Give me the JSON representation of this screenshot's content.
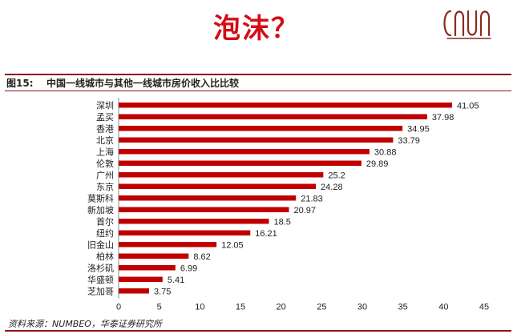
{
  "headline": "泡沫？",
  "figure": {
    "number": "图15:",
    "title": "中国一线城市与其他一线城市房价收入比比较"
  },
  "source": "资料来源：NUMBEO，华泰证券研究所",
  "colors": {
    "bar": "#c00000",
    "accent": "#d40e14",
    "logo": "#8b2a1e"
  },
  "chart_data": {
    "type": "bar",
    "orientation": "horizontal",
    "categories": [
      "深圳",
      "孟买",
      "香港",
      "北京",
      "上海",
      "伦敦",
      "广州",
      "东京",
      "莫斯科",
      "新加坡",
      "首尔",
      "纽约",
      "旧金山",
      "柏林",
      "洛杉矶",
      "华盛顿",
      "芝加哥"
    ],
    "values": [
      41.05,
      37.98,
      34.95,
      33.79,
      30.88,
      29.89,
      25.2,
      24.28,
      21.83,
      20.97,
      18.5,
      16.21,
      12.05,
      8.62,
      6.99,
      5.41,
      3.75
    ],
    "value_labels": [
      "41.05",
      "37.98",
      "34.95",
      "33.79",
      "30.88",
      "29.89",
      "25.2",
      "24.28",
      "21.83",
      "20.97",
      "18.5",
      "16.21",
      "12.05",
      "8.62",
      "6.99",
      "5.41",
      "3.75"
    ],
    "xlim": [
      0,
      45
    ],
    "xticks": [
      "0",
      "5",
      "10",
      "15",
      "20",
      "25",
      "30",
      "35",
      "40",
      "45"
    ],
    "grid": false,
    "legend": "none"
  }
}
